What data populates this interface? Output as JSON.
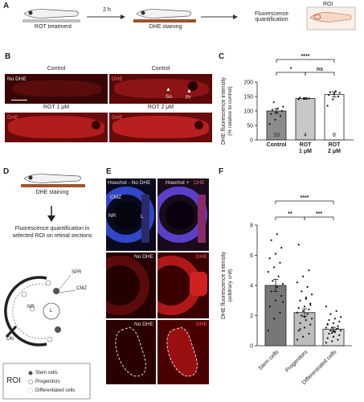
{
  "panelA": {
    "label": "A",
    "step1": "ROT treatment",
    "arrow1": "2 h",
    "step2": "DHE staining",
    "step3": "Fluorescence quantification",
    "roi": "ROI"
  },
  "panelB": {
    "label": "B",
    "col1_title": "Control",
    "col2_title": "Control",
    "col3_title": "ROT 1 μM",
    "col4_title": "ROT 2 μM",
    "tag_nodhe": "No DHE",
    "tag_dhe": "DHE",
    "marker_so": "So",
    "marker_pr": "Pr"
  },
  "panelC": {
    "label": "C"
  },
  "panelD": {
    "label": "D",
    "stain": "DHE staining",
    "quant": "Fluorescence quantification in selected ROI on retinal sections",
    "spr": "SPR",
    "cmz": "CMZ",
    "nr": "NR",
    "l": "L",
    "on": "ON",
    "roi": "ROI",
    "legend": [
      "Stem cells",
      "Progenitors",
      "Differentiated cells"
    ]
  },
  "panelE": {
    "label": "E",
    "top_left": "Hoechst - No DHE",
    "top_right_a": "Hoechst +",
    "top_right_b": "DHE",
    "cmz": "CMZ",
    "nr": "NR",
    "l": "L",
    "mid_left": "No DHE",
    "mid_right": "DHE",
    "bot_left": "No DHE",
    "bot_right": "DHE"
  },
  "panelF": {
    "label": "F"
  },
  "chart_data": [
    {
      "type": "bar",
      "panel": "C",
      "categories": [
        "Control",
        "ROT 1 μM",
        "ROT 2 μM"
      ],
      "values": [
        100,
        143,
        157
      ],
      "n": [
        "10",
        "4",
        "8"
      ],
      "errors": [
        8,
        3,
        9
      ],
      "ylabel": "DHE fluorescence intensity",
      "ylabel2": "(% relative to control)",
      "ylim": [
        0,
        200
      ],
      "yticks": [
        "0",
        "50",
        "100",
        "150",
        "200"
      ],
      "points": [
        [
          55,
          70,
          82,
          90,
          95,
          100,
          104,
          108,
          115,
          130
        ],
        [
          140,
          142,
          143,
          146
        ],
        [
          118,
          140,
          150,
          155,
          160,
          163,
          165,
          168
        ]
      ],
      "sig": [
        {
          "from": 0,
          "to": 2,
          "text": "****"
        },
        {
          "from": 0,
          "to": 1,
          "text": "*"
        },
        {
          "from": 1,
          "to": 2,
          "text": "ns"
        }
      ],
      "colors": [
        "#8c8c8c",
        "#c8c8c8",
        "#ffffff"
      ]
    },
    {
      "type": "bar",
      "panel": "F",
      "categories": [
        "Stem cells",
        "Progenitors",
        "Differentiated cells"
      ],
      "values": [
        4.0,
        2.2,
        1.1
      ],
      "errors": [
        0.4,
        0.25,
        0.12
      ],
      "ylabel": "DHE fluorescence intensity",
      "ylabel2": "(arbitrary unit)",
      "ylim": [
        0,
        8
      ],
      "yticks": [
        "0",
        "2",
        "4",
        "6",
        "8"
      ],
      "points": [
        [
          1.0,
          1.8,
          2.2,
          2.6,
          3.0,
          3.3,
          3.6,
          3.9,
          4.1,
          4.3,
          4.6,
          4.9,
          5.2,
          5.5,
          5.8,
          6.1,
          6.5,
          7.0,
          7.4,
          2.9
        ],
        [
          0.4,
          0.6,
          0.8,
          1.0,
          1.2,
          1.4,
          1.5,
          1.7,
          1.8,
          2.0,
          2.1,
          2.2,
          2.3,
          2.4,
          2.5,
          2.6,
          2.8,
          3.0,
          3.2,
          3.4,
          3.6,
          3.9,
          4.2,
          4.6,
          5.0,
          6.7,
          1.9,
          2.7,
          1.1,
          3.1
        ],
        [
          0.2,
          0.3,
          0.4,
          0.5,
          0.6,
          0.7,
          0.8,
          0.9,
          1.0,
          1.0,
          1.1,
          1.2,
          1.2,
          1.3,
          1.4,
          1.5,
          1.6,
          1.7,
          1.8,
          1.9,
          2.1,
          2.3,
          2.6,
          0.85,
          1.15,
          1.45,
          0.95
        ]
      ],
      "sig": [
        {
          "from": 0,
          "to": 2,
          "text": "****"
        },
        {
          "from": 0,
          "to": 1,
          "text": "**"
        },
        {
          "from": 1,
          "to": 2,
          "text": "***"
        }
      ],
      "colors": [
        "#777777",
        "#bdbdbd",
        "#dcdcdc"
      ]
    }
  ]
}
